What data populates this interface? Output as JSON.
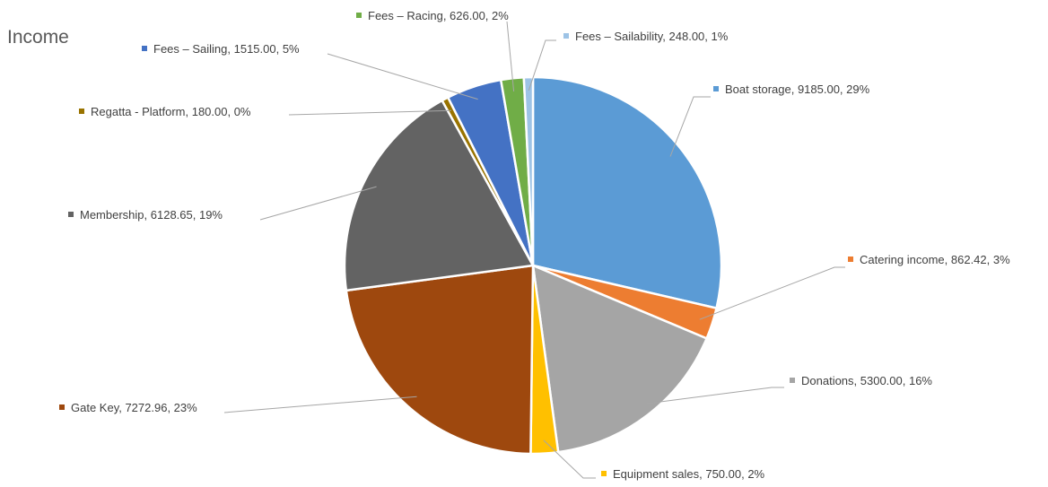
{
  "chart_data": {
    "type": "pie",
    "title": "Income",
    "start_angle_deg": 0,
    "direction": "clockwise",
    "slices": [
      {
        "label": "Boat storage",
        "value": 9185.0,
        "value_text": "9185.00",
        "percent_text": "29%",
        "color": "#5b9bd5"
      },
      {
        "label": "Catering income",
        "value": 862.42,
        "value_text": "862.42",
        "percent_text": "3%",
        "color": "#ed7d31"
      },
      {
        "label": "Donations",
        "value": 5300.0,
        "value_text": "5300.00",
        "percent_text": "16%",
        "color": "#a5a5a5"
      },
      {
        "label": "Equipment sales",
        "value": 750.0,
        "value_text": "750.00",
        "percent_text": "2%",
        "color": "#ffc000"
      },
      {
        "label": "Gate Key",
        "value": 7272.96,
        "value_text": "7272.96",
        "percent_text": "23%",
        "color": "#9e480e"
      },
      {
        "label": "Membership",
        "value": 6128.65,
        "value_text": "6128.65",
        "percent_text": "19%",
        "color": "#636363"
      },
      {
        "label": "Regatta - Platform",
        "value": 180.0,
        "value_text": "180.00",
        "percent_text": "0%",
        "color": "#997300"
      },
      {
        "label": "Fees – Sailing",
        "value": 1515.0,
        "value_text": "1515.00",
        "percent_text": "5%",
        "color": "#4472c4"
      },
      {
        "label": "Fees – Racing",
        "value": 626.0,
        "value_text": "626.00",
        "percent_text": "2%",
        "color": "#70ad47"
      },
      {
        "label": "Fees – Sailability",
        "value": 248.0,
        "value_text": "248.00",
        "percent_text": "1%",
        "color": "#9dc3e6"
      }
    ]
  }
}
